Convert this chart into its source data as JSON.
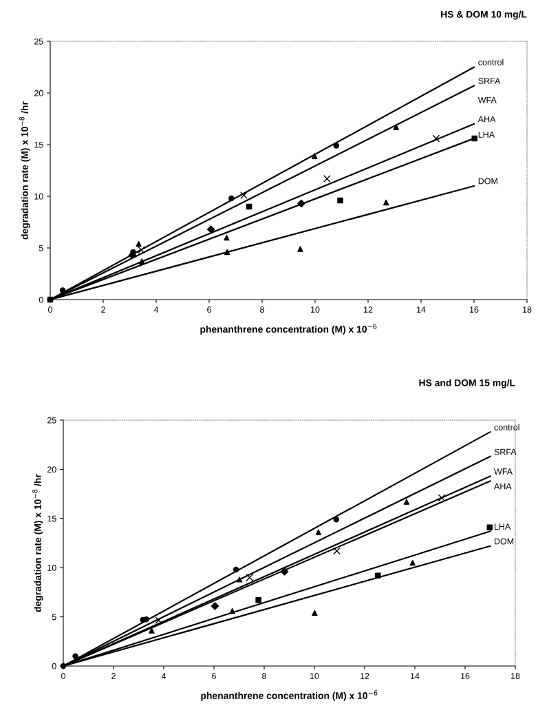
{
  "chart_data": [
    {
      "type": "scatter",
      "title": "HS & DOM 10 mg/L",
      "xlabel": "phenanthrene concentration (M) x 10$^{−6}$",
      "ylabel": "degradation rate (M) x 10$^{−8}$ /hr",
      "xlim": [
        0,
        18
      ],
      "ylim": [
        0,
        25
      ],
      "xticks": [
        0,
        2,
        4,
        6,
        8,
        10,
        12,
        14,
        16,
        18
      ],
      "yticks": [
        0,
        5,
        10,
        15,
        20,
        25
      ],
      "grid": false,
      "legend": false,
      "annotations": [
        "WFA"
      ],
      "series": [
        {
          "name": "control",
          "type": "line",
          "color": "#000000",
          "x": [
            0,
            16
          ],
          "values": [
            0,
            22.5
          ]
        },
        {
          "name": "SRFA",
          "type": "line",
          "color": "#000000",
          "x": [
            0,
            16
          ],
          "values": [
            0,
            20.7
          ]
        },
        {
          "name": "AHA",
          "type": "line",
          "color": "#000000",
          "x": [
            0,
            16
          ],
          "values": [
            0,
            17.0
          ]
        },
        {
          "name": "LHA",
          "type": "line",
          "color": "#000000",
          "x": [
            0,
            16
          ],
          "values": [
            0,
            15.6
          ]
        },
        {
          "name": "DOM",
          "type": "line",
          "color": "#000000",
          "x": [
            0,
            16
          ],
          "values": [
            0,
            11.0
          ]
        },
        {
          "marker": "cross",
          "color": "#000000",
          "x": [
            3.44,
            7.31,
            10.45,
            14.57
          ],
          "values": [
            4.8,
            10.1,
            11.7,
            15.6
          ]
        },
        {
          "marker": "circle",
          "color": "#000000",
          "x": [
            0.47,
            3.13,
            6.84,
            10.8
          ],
          "values": [
            0.9,
            4.6,
            9.8,
            14.9
          ]
        },
        {
          "marker": "triangle",
          "color": "#000000",
          "x": [
            3.34,
            6.66,
            9.98,
            13.06
          ],
          "values": [
            5.4,
            6.0,
            13.9,
            16.7
          ]
        },
        {
          "marker": "diamond",
          "color": "#000000",
          "x": [
            3.1,
            6.07,
            9.48
          ],
          "values": [
            4.3,
            6.8,
            9.3
          ]
        },
        {
          "marker": "square",
          "color": "#000000",
          "x": [
            0,
            7.51,
            10.95,
            16.02
          ],
          "values": [
            0,
            9.0,
            9.6,
            15.6
          ]
        },
        {
          "marker": "triangle",
          "color": "#000000",
          "x": [
            3.46,
            6.68,
            9.44,
            12.68
          ],
          "values": [
            3.7,
            4.6,
            4.9,
            9.4
          ]
        }
      ]
    },
    {
      "type": "scatter",
      "title": "HS and DOM 15 mg/L",
      "xlabel": "phenanthrene concentration (M) x 10$^{−6}$",
      "ylabel": "degradation rate (M) x 10$^{−8}$ /hr",
      "xlim": [
        0,
        18
      ],
      "ylim": [
        0,
        25
      ],
      "xticks": [
        0,
        2,
        4,
        6,
        8,
        10,
        12,
        14,
        16,
        18
      ],
      "yticks": [
        0,
        5,
        10,
        15,
        20,
        25
      ],
      "grid": false,
      "legend": false,
      "series": [
        {
          "name": "control",
          "type": "line",
          "color": "#000000",
          "x": [
            0,
            17
          ],
          "values": [
            0,
            23.8
          ]
        },
        {
          "name": "SRFA",
          "type": "line",
          "color": "#000000",
          "x": [
            0,
            17
          ],
          "values": [
            0,
            21.3
          ]
        },
        {
          "name": "WFA",
          "type": "line",
          "color": "#000000",
          "x": [
            0,
            17
          ],
          "values": [
            0,
            19.3
          ]
        },
        {
          "name": "AHA",
          "type": "line",
          "color": "#000000",
          "x": [
            0,
            17
          ],
          "values": [
            0,
            18.8
          ]
        },
        {
          "name": "LHA",
          "type": "line",
          "color": "#000000",
          "x": [
            0,
            17
          ],
          "values": [
            0,
            13.7
          ]
        },
        {
          "name": "DOM",
          "type": "line",
          "color": "#000000",
          "x": [
            0,
            17
          ],
          "values": [
            0,
            12.2
          ]
        },
        {
          "marker": "circle",
          "color": "#000000",
          "x": [
            0,
            0.48,
            3.17,
            3.31,
            6.88,
            10.87
          ],
          "values": [
            0,
            1.0,
            4.7,
            4.75,
            9.8,
            14.9
          ]
        },
        {
          "marker": "triangle",
          "color": "#000000",
          "x": [
            7.02,
            10.16,
            13.67
          ],
          "values": [
            8.8,
            13.6,
            16.7
          ]
        },
        {
          "marker": "cross",
          "color": "#000000",
          "x": [
            3.8,
            7.42,
            10.89,
            15.07
          ],
          "values": [
            4.65,
            9.0,
            11.7,
            17.1
          ]
        },
        {
          "marker": "diamond",
          "color": "#000000",
          "x": [
            6.04,
            8.81
          ],
          "values": [
            6.1,
            9.6
          ]
        },
        {
          "marker": "square",
          "color": "#000000",
          "x": [
            7.77,
            12.53,
            16.98
          ],
          "values": [
            6.7,
            9.2,
            14.1
          ]
        },
        {
          "marker": "triangle",
          "color": "#000000",
          "x": [
            3.52,
            6.73,
            10.01,
            13.91
          ],
          "values": [
            3.6,
            5.6,
            5.4,
            10.5
          ]
        }
      ]
    }
  ]
}
